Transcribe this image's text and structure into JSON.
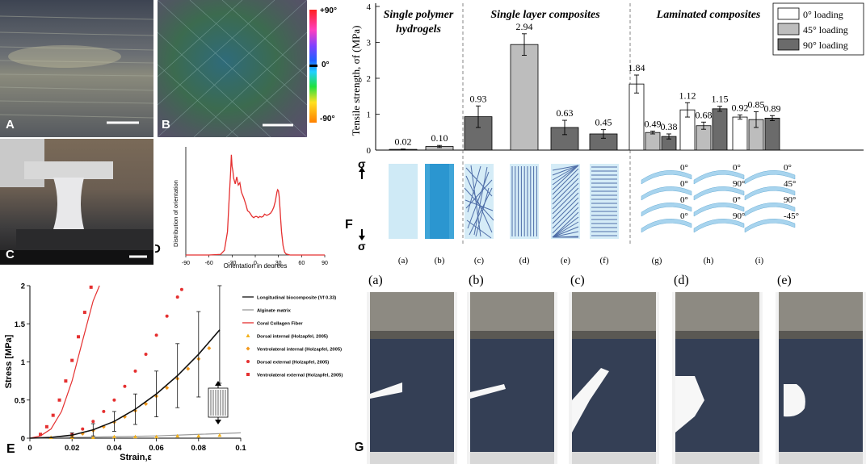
{
  "panel_labels": {
    "A": "A",
    "B": "B",
    "C": "C",
    "D": "D",
    "E": "E",
    "F": "F",
    "G": "G"
  },
  "colorbar": {
    "top": "+90°",
    "mid": "0°",
    "bottom": "-90°"
  },
  "colors": {
    "red": "#e53030",
    "orange": "#f39a1d",
    "black": "#111111",
    "gray": "#888888",
    "bar0": "#ffffff",
    "bar45": "#bdbdbd",
    "bar90": "#6b6b6b",
    "hydrogel": "#bfe3f3",
    "fiber": "#4f6ea8"
  },
  "chart_data": [
    {
      "id": "D",
      "type": "line",
      "xlabel": "Orientation in degrees",
      "ylabel": "Distribution of orientation",
      "xlim": [
        -90,
        90
      ],
      "xticks": [
        -90,
        -60,
        -30,
        0,
        30,
        60,
        90
      ],
      "x": [
        -90,
        -60,
        -45,
        -40,
        -36,
        -34,
        -32,
        -31,
        -30,
        -29,
        -28,
        -26,
        -24,
        -22,
        -20,
        -18,
        -15,
        -12,
        -10,
        -8,
        -6,
        -4,
        -2,
        0,
        2,
        4,
        6,
        8,
        10,
        12,
        15,
        18,
        20,
        22,
        24,
        26,
        27,
        28,
        29,
        30,
        31,
        32,
        33,
        34,
        36,
        38,
        40,
        45,
        50,
        55,
        60,
        90
      ],
      "y": [
        0,
        0,
        0.05,
        0.4,
        2.0,
        4.6,
        7.0,
        8.6,
        7.6,
        7.2,
        6.6,
        6.1,
        6.7,
        6.0,
        6.2,
        5.4,
        4.9,
        4.3,
        3.8,
        3.7,
        3.5,
        3.3,
        3.2,
        3.3,
        3.3,
        3.2,
        3.3,
        3.25,
        3.3,
        3.5,
        3.4,
        3.5,
        3.6,
        3.8,
        4.1,
        4.6,
        5.0,
        5.4,
        5.6,
        5.5,
        5.0,
        4.0,
        3.0,
        2.0,
        0.8,
        0.25,
        0.08,
        0,
        0,
        0,
        0,
        0
      ]
    },
    {
      "id": "E",
      "type": "line",
      "xlabel": "Strain,ε",
      "ylabel": "Stress [MPa]",
      "xlim": [
        0,
        0.1
      ],
      "ylim": [
        0,
        2
      ],
      "xticks": [
        0,
        0.02,
        0.04,
        0.06,
        0.08,
        0.1
      ],
      "yticks": [
        0,
        0.5,
        1,
        1.5,
        2
      ],
      "xtick_labels": [
        "0",
        "0.02",
        "0.04",
        "0.06",
        "0.08",
        "0.1"
      ],
      "ytick_labels": [
        "0",
        "0.5",
        "1",
        "1.5",
        "2"
      ],
      "legend": [
        {
          "label": "Longitudinal biocomposite (Vf 0.33)",
          "style": "line",
          "color": "#111111"
        },
        {
          "label": "Alginate matrix",
          "style": "line",
          "color": "#999999"
        },
        {
          "label": "Coral Collagen Fiber",
          "style": "line",
          "color": "#e53030"
        },
        {
          "label": "Dorsal internal (Holzapfel, 2005)",
          "style": "triangle",
          "color": "#f3b21d"
        },
        {
          "label": "Ventrolateral internal (Holzapfel, 2005)",
          "style": "diamond",
          "color": "#f39a1d"
        },
        {
          "label": "Dorsal external (Holzapfel, 2005)",
          "style": "dot",
          "color": "#e53030"
        },
        {
          "label": "Ventrolateral external (Holzapfel, 2005)",
          "style": "square",
          "color": "#e53030"
        }
      ],
      "series": [
        {
          "name": "Longitudinal biocomposite (Vf 0.33)",
          "x": [
            0,
            0.01,
            0.02,
            0.03,
            0.04,
            0.05,
            0.06,
            0.07,
            0.08,
            0.09
          ],
          "y": [
            0,
            0.01,
            0.04,
            0.11,
            0.22,
            0.38,
            0.58,
            0.82,
            1.1,
            1.42
          ],
          "err": [
            0,
            0,
            0.03,
            0.08,
            0.13,
            0.2,
            0.3,
            0.42,
            0.56,
            0.7
          ]
        },
        {
          "name": "Alginate matrix",
          "x": [
            0,
            0.02,
            0.04,
            0.06,
            0.08,
            0.1
          ],
          "y": [
            0,
            0.01,
            0.02,
            0.03,
            0.05,
            0.07
          ]
        },
        {
          "name": "Coral Collagen Fiber",
          "x": [
            0,
            0.005,
            0.01,
            0.015,
            0.02,
            0.025,
            0.03,
            0.033
          ],
          "y": [
            0,
            0.03,
            0.12,
            0.35,
            0.75,
            1.28,
            1.8,
            2.0
          ]
        },
        {
          "name": "Dorsal internal (Holzapfel, 2005)",
          "x": [
            0.01,
            0.02,
            0.03,
            0.04,
            0.05,
            0.06,
            0.07,
            0.08,
            0.09
          ],
          "y": [
            0.01,
            0.01,
            0.01,
            0.02,
            0.02,
            0.02,
            0.03,
            0.03,
            0.04
          ]
        },
        {
          "name": "Ventrolateral internal (Holzapfel, 2005)",
          "x": [
            0.02,
            0.025,
            0.03,
            0.035,
            0.04,
            0.045,
            0.05,
            0.055,
            0.06,
            0.065,
            0.07,
            0.075,
            0.08,
            0.085
          ],
          "y": [
            0.03,
            0.06,
            0.1,
            0.15,
            0.21,
            0.28,
            0.36,
            0.45,
            0.55,
            0.66,
            0.78,
            0.91,
            1.04,
            1.18
          ]
        },
        {
          "name": "Dorsal external (Holzapfel, 2005)",
          "x": [
            0.02,
            0.025,
            0.03,
            0.035,
            0.04,
            0.045,
            0.05,
            0.055,
            0.06,
            0.065,
            0.07,
            0.072
          ],
          "y": [
            0.05,
            0.12,
            0.22,
            0.35,
            0.5,
            0.68,
            0.88,
            1.1,
            1.35,
            1.6,
            1.85,
            1.95
          ]
        },
        {
          "name": "Ventrolateral external (Holzapfel, 2005)",
          "x": [
            0.005,
            0.008,
            0.011,
            0.014,
            0.017,
            0.02,
            0.023,
            0.026,
            0.029
          ],
          "y": [
            0.05,
            0.15,
            0.3,
            0.5,
            0.75,
            1.02,
            1.33,
            1.65,
            1.98
          ]
        }
      ]
    },
    {
      "id": "F",
      "type": "bar",
      "ylabel": "Tensile strength, σf (MPa)",
      "ylim": [
        0,
        4
      ],
      "yticks": [
        0,
        1,
        2,
        3,
        4
      ],
      "group_titles": [
        "Single polymer hydrogels",
        "Single layer composites",
        "Laminated composites"
      ],
      "group_title_lines": [
        [
          "Single polymer",
          "hydrogels"
        ],
        [
          "Single layer composites"
        ],
        [
          "Laminated composites"
        ]
      ],
      "legend": [
        "0° loading",
        "45° loading",
        "90° loading"
      ],
      "categories": [
        "(a)",
        "(b)",
        "(c)",
        "(d)",
        "(e)",
        "(f)",
        "(g)",
        "(h)",
        "(i)"
      ],
      "series": [
        {
          "name": "0° loading",
          "values": [
            0.02,
            0.1,
            0.93,
            2.94,
            0.63,
            0.45,
            1.84,
            1.12,
            0.92
          ],
          "errors": [
            0.01,
            0.03,
            0.3,
            0.3,
            0.2,
            0.12,
            0.25,
            0.2,
            0.06
          ],
          "labels": [
            "0.02",
            "0.10",
            "0.93",
            "2.94",
            "0.63",
            "0.45",
            "1.84",
            "1.12",
            "0.92"
          ]
        },
        {
          "name": "45° loading",
          "values": [
            null,
            null,
            null,
            null,
            null,
            null,
            0.49,
            0.68,
            0.85
          ],
          "errors": [
            0,
            0,
            0,
            0,
            0,
            0,
            0.04,
            0.1,
            0.22
          ],
          "labels": [
            "",
            "",
            "",
            "",
            "",
            "",
            "0.49",
            "0.68",
            "0.85"
          ]
        },
        {
          "name": "90° loading",
          "values": [
            null,
            null,
            null,
            null,
            null,
            null,
            0.38,
            1.15,
            0.89
          ],
          "errors": [
            0,
            0,
            0,
            0,
            0,
            0,
            0.07,
            0.07,
            0.07
          ],
          "labels": [
            "",
            "",
            "",
            "",
            "",
            "",
            "0.38",
            "1.15",
            "0.89"
          ]
        }
      ],
      "bar_fill": [
        "#ffffff",
        "#bdbdbd",
        "#6b6b6b",
        "#bdbdbd",
        "#6b6b6b",
        "#6b6b6b"
      ],
      "schematic_angles": {
        "g": [
          "0°",
          "0°",
          "0°",
          "0°"
        ],
        "h": [
          "0°",
          "90°",
          "0°",
          "90°"
        ],
        "i": [
          "0°",
          "45°",
          "90°",
          "-45°"
        ]
      },
      "sigma_symbol": "σ"
    }
  ],
  "panel_g": {
    "labels": [
      "(a)",
      "(b)",
      "(c)",
      "(d)",
      "(e)"
    ]
  }
}
